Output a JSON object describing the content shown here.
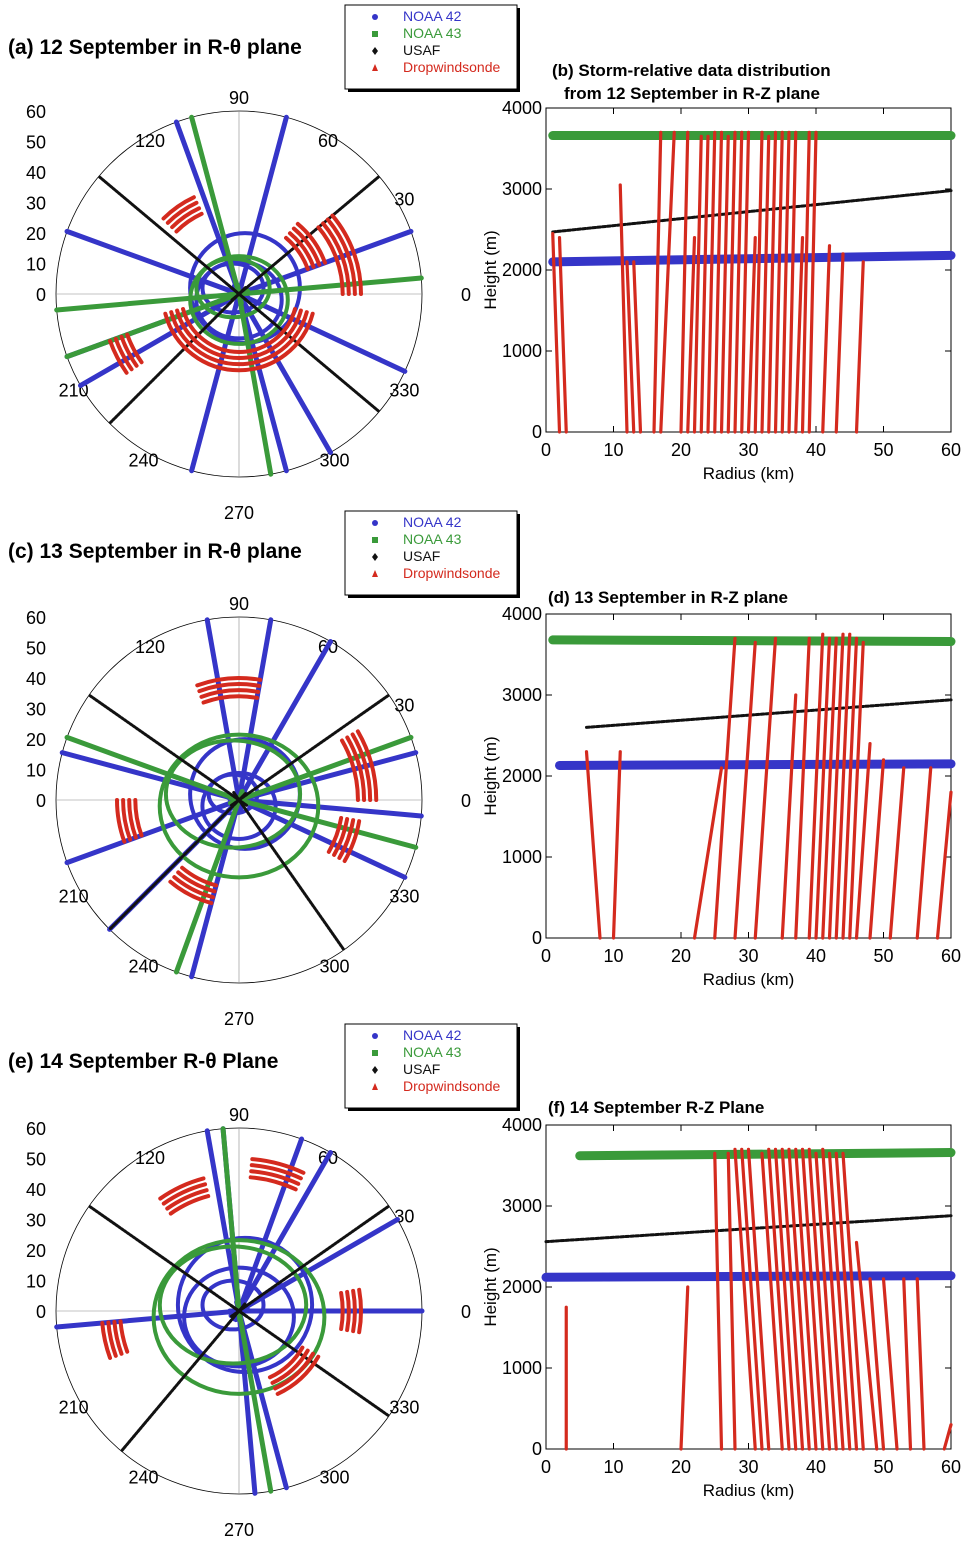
{
  "colors": {
    "noaa42": "#3535c8",
    "noaa43": "#3a9a3a",
    "usaf": "#111111",
    "dropwindsonde": "#d42a1e"
  },
  "legend": {
    "entries": [
      {
        "label": "NOAA 42",
        "color": "#3535c8",
        "marker": "circle"
      },
      {
        "label": "NOAA 43",
        "color": "#3a9a3a",
        "marker": "square"
      },
      {
        "label": "USAF",
        "color": "#111111",
        "marker": "diamond"
      },
      {
        "label": "Dropwindsonde",
        "color": "#d42a1e",
        "marker": "triangle"
      }
    ]
  },
  "panels": [
    {
      "id": "a",
      "title": "(a) 12 September in R-θ plane"
    },
    {
      "id": "b",
      "title": "(b) Storm-relative data distribution",
      "title2": "from 12 September in R-Z plane"
    },
    {
      "id": "c",
      "title": "(c) 13 September in R-θ plane"
    },
    {
      "id": "d",
      "title": "(d) 13 September in R-Z plane"
    },
    {
      "id": "e",
      "title": "(e) 14 September R-θ Plane"
    },
    {
      "id": "f",
      "title": "(f) 14 September R-Z Plane"
    }
  ],
  "chart_data": [
    {
      "id": "a",
      "type": "scatter",
      "projection": "polar",
      "r_ticks": [
        "0",
        "10",
        "20",
        "30",
        "40",
        "50",
        "60"
      ],
      "angle_ticks": [
        "0",
        "30",
        "60",
        "90",
        "120",
        "150",
        "180",
        "210",
        "240",
        "270",
        "300",
        "330"
      ],
      "angle_labels_shown": [
        "0",
        "30",
        "60",
        "90",
        "120",
        "210",
        "240",
        "270",
        "300",
        "330"
      ],
      "rlim": [
        0,
        60
      ],
      "series": [
        {
          "name": "NOAA 42",
          "radial_legs_deg": [
            20,
            75,
            110,
            160,
            200,
            210,
            285,
            300,
            335,
            255
          ],
          "loop_radii_km": [
            10,
            14,
            18
          ]
        },
        {
          "name": "NOAA 43",
          "radial_legs_deg": [
            5,
            105,
            200,
            280,
            185
          ],
          "loop_radii_km": [
            12,
            16
          ]
        },
        {
          "name": "USAF",
          "radial_legs_deg": [
            40,
            140,
            225,
            320
          ]
        },
        {
          "name": "Dropwindsonde",
          "arcs": [
            {
              "r_km": 25,
              "from_deg": 195,
              "to_deg": 345
            },
            {
              "r_km": 30,
              "from_deg": 20,
              "to_deg": 50
            },
            {
              "r_km": 35,
              "from_deg": 115,
              "to_deg": 135
            },
            {
              "r_km": 40,
              "from_deg": 0,
              "to_deg": 40
            },
            {
              "r_km": 45,
              "from_deg": 200,
              "to_deg": 215
            }
          ]
        }
      ]
    },
    {
      "id": "b",
      "type": "scatter",
      "xlabel": "Radius (km)",
      "ylabel": "Height (m)",
      "xlim": [
        0,
        60
      ],
      "ylim": [
        0,
        4000
      ],
      "x_ticks": [
        "0",
        "10",
        "20",
        "30",
        "40",
        "50",
        "60"
      ],
      "y_ticks": [
        "0",
        "1000",
        "2000",
        "3000",
        "4000"
      ],
      "series": [
        {
          "name": "NOAA 43",
          "x": [
            1,
            60
          ],
          "y": [
            3660,
            3660
          ]
        },
        {
          "name": "USAF",
          "x": [
            1,
            60
          ],
          "y": [
            2470,
            2980
          ]
        },
        {
          "name": "NOAA 42",
          "x": [
            1,
            60
          ],
          "y": [
            2100,
            2180
          ]
        },
        {
          "name": "Dropwindsonde",
          "profiles": [
            {
              "x_top": 1,
              "x_bottom": 2,
              "top": 2450
            },
            {
              "x_top": 2,
              "x_bottom": 3,
              "top": 2400
            },
            {
              "x_top": 11,
              "x_bottom": 12,
              "top": 3050
            },
            {
              "x_top": 12,
              "x_bottom": 13,
              "top": 2100
            },
            {
              "x_top": 13,
              "x_bottom": 14,
              "top": 2100
            },
            {
              "x_top": 17,
              "x_bottom": 16,
              "top": 3700
            },
            {
              "x_top": 19,
              "x_bottom": 17,
              "top": 3700
            },
            {
              "x_top": 21,
              "x_bottom": 20,
              "top": 3700
            },
            {
              "x_top": 22,
              "x_bottom": 21,
              "top": 2400
            },
            {
              "x_top": 23,
              "x_bottom": 22,
              "top": 3650
            },
            {
              "x_top": 24,
              "x_bottom": 23,
              "top": 3650
            },
            {
              "x_top": 25,
              "x_bottom": 24,
              "top": 3700
            },
            {
              "x_top": 26,
              "x_bottom": 25,
              "top": 3700
            },
            {
              "x_top": 27,
              "x_bottom": 26,
              "top": 3650
            },
            {
              "x_top": 28,
              "x_bottom": 27,
              "top": 3700
            },
            {
              "x_top": 29,
              "x_bottom": 28,
              "top": 3700
            },
            {
              "x_top": 30,
              "x_bottom": 29,
              "top": 3700
            },
            {
              "x_top": 31,
              "x_bottom": 30,
              "top": 2400
            },
            {
              "x_top": 32,
              "x_bottom": 31,
              "top": 3700
            },
            {
              "x_top": 33,
              "x_bottom": 32,
              "top": 3650
            },
            {
              "x_top": 34,
              "x_bottom": 33,
              "top": 3700
            },
            {
              "x_top": 35,
              "x_bottom": 34,
              "top": 3700
            },
            {
              "x_top": 36,
              "x_bottom": 35,
              "top": 3700
            },
            {
              "x_top": 37,
              "x_bottom": 36,
              "top": 3700
            },
            {
              "x_top": 38,
              "x_bottom": 37,
              "top": 2400
            },
            {
              "x_top": 39,
              "x_bottom": 38,
              "top": 3700
            },
            {
              "x_top": 40,
              "x_bottom": 39,
              "top": 3700
            },
            {
              "x_top": 42,
              "x_bottom": 41,
              "top": 2300
            },
            {
              "x_top": 44,
              "x_bottom": 43,
              "top": 2200
            },
            {
              "x_top": 47,
              "x_bottom": 46,
              "top": 2100
            }
          ]
        }
      ]
    },
    {
      "id": "c",
      "type": "scatter",
      "projection": "polar",
      "r_ticks": [
        "0",
        "10",
        "20",
        "30",
        "40",
        "50",
        "60"
      ],
      "angle_labels_shown": [
        "0",
        "30",
        "60",
        "90",
        "120",
        "210",
        "240",
        "270",
        "300",
        "330"
      ],
      "rlim": [
        0,
        60
      ],
      "series": [
        {
          "name": "NOAA 42",
          "radial_legs_deg": [
            15,
            60,
            100,
            80,
            165,
            200,
            225,
            255,
            335,
            355
          ],
          "loop_radii_km": [
            8,
            12,
            18
          ]
        },
        {
          "name": "NOAA 43",
          "radial_legs_deg": [
            20,
            160,
            250,
            345
          ],
          "loop_radii_km": [
            22,
            26
          ]
        },
        {
          "name": "USAF",
          "radial_legs_deg": [
            35,
            145,
            225,
            305
          ]
        },
        {
          "name": "Dropwindsonde",
          "arcs": [
            {
              "r_km": 40,
              "from_deg": 80,
              "to_deg": 110
            },
            {
              "r_km": 45,
              "from_deg": 0,
              "to_deg": 30
            },
            {
              "r_km": 40,
              "from_deg": 180,
              "to_deg": 200
            },
            {
              "r_km": 35,
              "from_deg": 230,
              "to_deg": 255
            },
            {
              "r_km": 40,
              "from_deg": 330,
              "to_deg": 350
            }
          ]
        }
      ]
    },
    {
      "id": "d",
      "type": "scatter",
      "xlabel": "Radius (km)",
      "ylabel": "Height (m)",
      "xlim": [
        0,
        60
      ],
      "ylim": [
        0,
        4000
      ],
      "x_ticks": [
        "0",
        "10",
        "20",
        "30",
        "40",
        "50",
        "60"
      ],
      "y_ticks": [
        "0",
        "1000",
        "2000",
        "3000",
        "4000"
      ],
      "series": [
        {
          "name": "NOAA 43",
          "x": [
            1,
            60
          ],
          "y": [
            3680,
            3660
          ]
        },
        {
          "name": "USAF",
          "x": [
            6,
            60
          ],
          "y": [
            2600,
            2940
          ]
        },
        {
          "name": "NOAA 42",
          "x": [
            2,
            60
          ],
          "y": [
            2130,
            2150
          ]
        },
        {
          "name": "Dropwindsonde",
          "profiles": [
            {
              "x_top": 6,
              "x_bottom": 8,
              "top": 2300
            },
            {
              "x_top": 11,
              "x_bottom": 10,
              "top": 2300
            },
            {
              "x_top": 26,
              "x_bottom": 22,
              "top": 2100
            },
            {
              "x_top": 28,
              "x_bottom": 25,
              "top": 3700
            },
            {
              "x_top": 31,
              "x_bottom": 28,
              "top": 3650
            },
            {
              "x_top": 34,
              "x_bottom": 31,
              "top": 3700
            },
            {
              "x_top": 37,
              "x_bottom": 35,
              "top": 3000
            },
            {
              "x_top": 39,
              "x_bottom": 37,
              "top": 3700
            },
            {
              "x_top": 41,
              "x_bottom": 39,
              "top": 3750
            },
            {
              "x_top": 42,
              "x_bottom": 40,
              "top": 3700
            },
            {
              "x_top": 43,
              "x_bottom": 41,
              "top": 3700
            },
            {
              "x_top": 44,
              "x_bottom": 42,
              "top": 3750
            },
            {
              "x_top": 45,
              "x_bottom": 43,
              "top": 3750
            },
            {
              "x_top": 46,
              "x_bottom": 44,
              "top": 3700
            },
            {
              "x_top": 47,
              "x_bottom": 45,
              "top": 3650
            },
            {
              "x_top": 48,
              "x_bottom": 46,
              "top": 2400
            },
            {
              "x_top": 50,
              "x_bottom": 48,
              "top": 2200
            },
            {
              "x_top": 53,
              "x_bottom": 51,
              "top": 2100
            },
            {
              "x_top": 57,
              "x_bottom": 55,
              "top": 2100
            },
            {
              "x_top": 60,
              "x_bottom": 58,
              "top": 1800
            }
          ]
        }
      ]
    },
    {
      "id": "e",
      "type": "scatter",
      "projection": "polar",
      "r_ticks": [
        "0",
        "10",
        "20",
        "30",
        "40",
        "50",
        "60"
      ],
      "angle_labels_shown": [
        "0",
        "30",
        "60",
        "90",
        "120",
        "210",
        "240",
        "270",
        "300",
        "330"
      ],
      "rlim": [
        0,
        60
      ],
      "series": [
        {
          "name": "NOAA 42",
          "radial_legs_deg": [
            0,
            30,
            60,
            70,
            95,
            100,
            185,
            275,
            285
          ],
          "loop_radii_km": [
            10,
            18,
            22
          ]
        },
        {
          "name": "NOAA 43",
          "radial_legs_deg": [
            95,
            280
          ],
          "loop_radii_km": [
            24,
            28
          ]
        },
        {
          "name": "USAF",
          "radial_legs_deg": [
            35,
            145,
            230,
            325
          ]
        },
        {
          "name": "Dropwindsonde",
          "arcs": [
            {
              "r_km": 45,
              "from_deg": 105,
              "to_deg": 125
            },
            {
              "r_km": 50,
              "from_deg": 65,
              "to_deg": 85
            },
            {
              "r_km": 40,
              "from_deg": 350,
              "to_deg": 10
            },
            {
              "r_km": 45,
              "from_deg": 185,
              "to_deg": 200
            },
            {
              "r_km": 30,
              "from_deg": 295,
              "to_deg": 330
            }
          ]
        }
      ]
    },
    {
      "id": "f",
      "type": "scatter",
      "xlabel": "Radius (km)",
      "ylabel": "Height (m)",
      "xlim": [
        0,
        60
      ],
      "ylim": [
        0,
        4000
      ],
      "x_ticks": [
        "0",
        "10",
        "20",
        "30",
        "40",
        "50",
        "60"
      ],
      "y_ticks": [
        "0",
        "1000",
        "2000",
        "3000",
        "4000"
      ],
      "series": [
        {
          "name": "NOAA 43",
          "x": [
            5,
            60
          ],
          "y": [
            3620,
            3660
          ]
        },
        {
          "name": "USAF",
          "x": [
            0,
            60
          ],
          "y": [
            2560,
            2880
          ]
        },
        {
          "name": "NOAA 42",
          "x": [
            0,
            60
          ],
          "y": [
            2120,
            2140
          ]
        },
        {
          "name": "Dropwindsonde",
          "profiles": [
            {
              "x_top": 3,
              "x_bottom": 3,
              "top": 1750
            },
            {
              "x_top": 21,
              "x_bottom": 20,
              "top": 2000
            },
            {
              "x_top": 25,
              "x_bottom": 26,
              "top": 3650
            },
            {
              "x_top": 27,
              "x_bottom": 28,
              "top": 3650
            },
            {
              "x_top": 28,
              "x_bottom": 31,
              "top": 3700
            },
            {
              "x_top": 29,
              "x_bottom": 32,
              "top": 3700
            },
            {
              "x_top": 30,
              "x_bottom": 33,
              "top": 3700
            },
            {
              "x_top": 32,
              "x_bottom": 35,
              "top": 3650
            },
            {
              "x_top": 33,
              "x_bottom": 36,
              "top": 3700
            },
            {
              "x_top": 34,
              "x_bottom": 37,
              "top": 3700
            },
            {
              "x_top": 35,
              "x_bottom": 38,
              "top": 3700
            },
            {
              "x_top": 36,
              "x_bottom": 39,
              "top": 3700
            },
            {
              "x_top": 37,
              "x_bottom": 40,
              "top": 3700
            },
            {
              "x_top": 38,
              "x_bottom": 41,
              "top": 3700
            },
            {
              "x_top": 39,
              "x_bottom": 42,
              "top": 3700
            },
            {
              "x_top": 40,
              "x_bottom": 43,
              "top": 3650
            },
            {
              "x_top": 41,
              "x_bottom": 44,
              "top": 3700
            },
            {
              "x_top": 42,
              "x_bottom": 45,
              "top": 3650
            },
            {
              "x_top": 43,
              "x_bottom": 46,
              "top": 3650
            },
            {
              "x_top": 44,
              "x_bottom": 47,
              "top": 3650
            },
            {
              "x_top": 46,
              "x_bottom": 49,
              "top": 2550
            },
            {
              "x_top": 48,
              "x_bottom": 50,
              "top": 2100
            },
            {
              "x_top": 50,
              "x_bottom": 52,
              "top": 2100
            },
            {
              "x_top": 53,
              "x_bottom": 54,
              "top": 2100
            },
            {
              "x_top": 55,
              "x_bottom": 56,
              "top": 2100
            },
            {
              "x_top": 60,
              "x_bottom": 59,
              "top": 300
            }
          ]
        }
      ]
    }
  ]
}
